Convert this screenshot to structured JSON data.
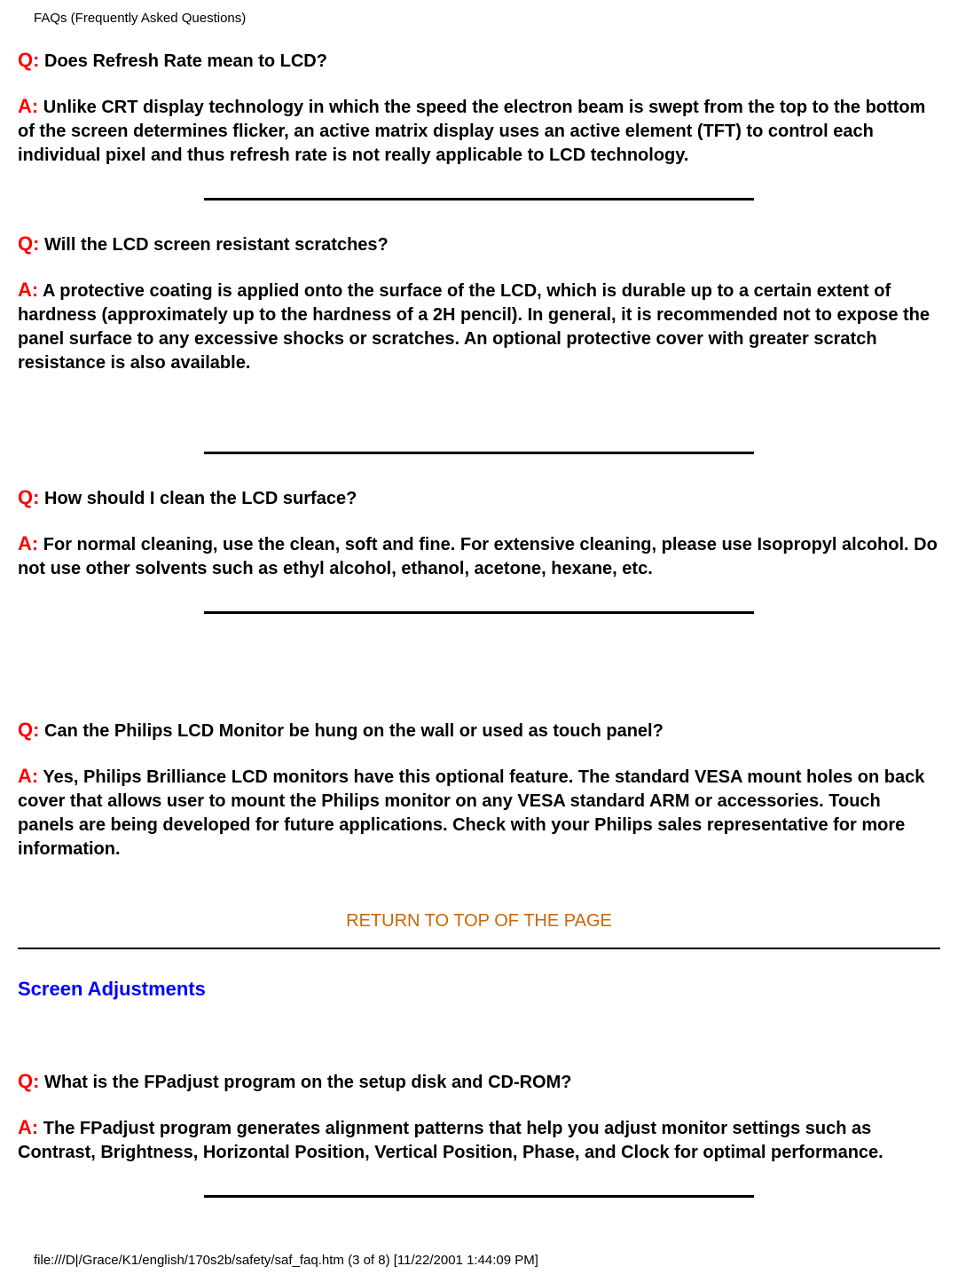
{
  "header": "FAQs (Frequently Asked Questions)",
  "labels": {
    "q": "Q:",
    "a": "A:"
  },
  "faqs": [
    {
      "q": "Does Refresh Rate mean to LCD?",
      "a": "Unlike CRT display technology in which the speed the electron beam is swept from the top to the bottom of the screen determines flicker, an active matrix display uses an active element (TFT) to control each individual pixel and thus refresh rate is not really applicable to LCD technology."
    },
    {
      "q": "Will the LCD screen resistant scratches?",
      "a": "A protective coating is applied onto the surface of the LCD, which is durable up to a certain extent of hardness (approximately up to the hardness of a 2H pencil). In general, it is recommended not to expose the panel surface to any excessive shocks or scratches. An optional protective cover with greater scratch resistance is also available."
    },
    {
      "q": "How should I clean the LCD surface?",
      "a": "For normal cleaning, use the clean, soft and fine. For extensive cleaning, please use Isopropyl alcohol. Do not use other solvents such as ethyl alcohol, ethanol, acetone, hexane, etc."
    },
    {
      "q": "Can the Philips LCD Monitor be hung on the wall or used as touch panel?",
      "a": "Yes, Philips Brilliance LCD monitors have this optional feature. The standard VESA mount holes on back cover that allows user to mount the Philips monitor on any VESA standard ARM or accessories. Touch panels are being developed for future applications. Check with your Philips sales representative for more information."
    }
  ],
  "return_link": "RETURN TO TOP OF THE PAGE",
  "section_title": "Screen Adjustments",
  "faqs2": [
    {
      "q": "What is the FPadjust program on the setup disk and CD-ROM?",
      "a": "The FPadjust program generates alignment patterns that help you adjust monitor settings such as Contrast, Brightness, Horizontal Position, Vertical Position, Phase, and Clock for optimal performance."
    }
  ],
  "footer": "file:///D|/Grace/K1/english/170s2b/safety/saf_faq.htm (3 of 8) [11/22/2001 1:44:09 PM]",
  "colors": {
    "q_prefix": "#ff0000",
    "a_prefix": "#ff0000",
    "link": "#cc6600",
    "section": "#0000ff",
    "text": "#000000",
    "bg": "#ffffff",
    "rule": "#000000"
  }
}
